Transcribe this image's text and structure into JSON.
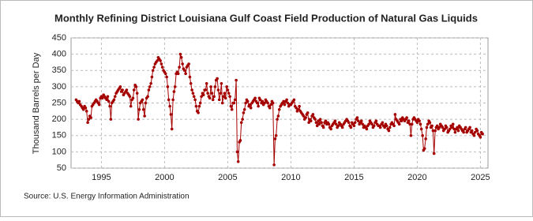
{
  "chart_data": {
    "type": "line",
    "title": "Monthly Refining District Louisiana Gulf Coast Field Production of Natural Gas Liquids",
    "y_label": "Thousand Barrels per Day",
    "source": "Source: U.S. Energy Information Administration",
    "color": "#a50000",
    "grid": true,
    "xlim": [
      1992.6,
      2025.6
    ],
    "xticks": [
      1995,
      2000,
      2005,
      2010,
      2015,
      2020,
      2025
    ],
    "ylim": [
      50,
      450
    ],
    "yticks": [
      50,
      100,
      150,
      200,
      250,
      300,
      350,
      400,
      450
    ],
    "x": [
      1993.0,
      1993.08,
      1993.17,
      1993.25,
      1993.33,
      1993.42,
      1993.5,
      1993.58,
      1993.67,
      1993.75,
      1993.83,
      1993.92,
      1994.0,
      1994.08,
      1994.17,
      1994.25,
      1994.33,
      1994.42,
      1994.5,
      1994.58,
      1994.67,
      1994.75,
      1994.83,
      1994.92,
      1995.0,
      1995.08,
      1995.17,
      1995.25,
      1995.33,
      1995.42,
      1995.5,
      1995.58,
      1995.67,
      1995.75,
      1995.83,
      1995.92,
      1996.0,
      1996.08,
      1996.17,
      1996.25,
      1996.33,
      1996.42,
      1996.5,
      1996.58,
      1996.67,
      1996.75,
      1996.83,
      1996.92,
      1997.0,
      1997.08,
      1997.17,
      1997.25,
      1997.33,
      1997.42,
      1997.5,
      1997.58,
      1997.67,
      1997.75,
      1997.83,
      1997.92,
      1998.0,
      1998.08,
      1998.17,
      1998.25,
      1998.33,
      1998.42,
      1998.5,
      1998.58,
      1998.67,
      1998.75,
      1998.83,
      1998.92,
      1999.0,
      1999.08,
      1999.17,
      1999.25,
      1999.33,
      1999.42,
      1999.5,
      1999.58,
      1999.67,
      1999.75,
      1999.83,
      1999.92,
      2000.0,
      2000.08,
      2000.17,
      2000.25,
      2000.33,
      2000.42,
      2000.5,
      2000.58,
      2000.67,
      2000.75,
      2000.83,
      2000.92,
      2001.0,
      2001.08,
      2001.17,
      2001.25,
      2001.33,
      2001.42,
      2001.5,
      2001.58,
      2001.67,
      2001.75,
      2001.83,
      2001.92,
      2002.0,
      2002.08,
      2002.17,
      2002.25,
      2002.33,
      2002.42,
      2002.5,
      2002.58,
      2002.67,
      2002.75,
      2002.83,
      2002.92,
      2003.0,
      2003.08,
      2003.17,
      2003.25,
      2003.33,
      2003.42,
      2003.5,
      2003.58,
      2003.67,
      2003.75,
      2003.83,
      2003.92,
      2004.0,
      2004.08,
      2004.17,
      2004.25,
      2004.33,
      2004.42,
      2004.5,
      2004.58,
      2004.67,
      2004.75,
      2004.83,
      2004.92,
      2005.0,
      2005.08,
      2005.17,
      2005.25,
      2005.33,
      2005.42,
      2005.5,
      2005.58,
      2005.67,
      2005.75,
      2005.83,
      2005.92,
      2006.0,
      2006.08,
      2006.17,
      2006.25,
      2006.33,
      2006.42,
      2006.5,
      2006.58,
      2006.67,
      2006.75,
      2006.83,
      2006.92,
      2007.0,
      2007.08,
      2007.17,
      2007.25,
      2007.33,
      2007.42,
      2007.5,
      2007.58,
      2007.67,
      2007.75,
      2007.83,
      2007.92,
      2008.0,
      2008.08,
      2008.17,
      2008.25,
      2008.33,
      2008.42,
      2008.5,
      2008.58,
      2008.67,
      2008.75,
      2008.83,
      2008.92,
      2009.0,
      2009.08,
      2009.17,
      2009.25,
      2009.33,
      2009.42,
      2009.5,
      2009.58,
      2009.67,
      2009.75,
      2009.83,
      2009.92,
      2010.0,
      2010.08,
      2010.17,
      2010.25,
      2010.33,
      2010.42,
      2010.5,
      2010.58,
      2010.67,
      2010.75,
      2010.83,
      2010.92,
      2011.0,
      2011.08,
      2011.17,
      2011.25,
      2011.33,
      2011.42,
      2011.5,
      2011.58,
      2011.67,
      2011.75,
      2011.83,
      2011.92,
      2012.0,
      2012.08,
      2012.17,
      2012.25,
      2012.33,
      2012.42,
      2012.5,
      2012.58,
      2012.67,
      2012.75,
      2012.83,
      2012.92,
      2013.0,
      2013.08,
      2013.17,
      2013.25,
      2013.33,
      2013.42,
      2013.5,
      2013.58,
      2013.67,
      2013.75,
      2013.83,
      2013.92,
      2014.0,
      2014.08,
      2014.17,
      2014.25,
      2014.33,
      2014.42,
      2014.5,
      2014.58,
      2014.67,
      2014.75,
      2014.83,
      2014.92,
      2015.0,
      2015.08,
      2015.17,
      2015.25,
      2015.33,
      2015.42,
      2015.5,
      2015.58,
      2015.67,
      2015.75,
      2015.83,
      2015.92,
      2016.0,
      2016.08,
      2016.17,
      2016.25,
      2016.33,
      2016.42,
      2016.5,
      2016.58,
      2016.67,
      2016.75,
      2016.83,
      2016.92,
      2017.0,
      2017.08,
      2017.17,
      2017.25,
      2017.33,
      2017.42,
      2017.5,
      2017.58,
      2017.67,
      2017.75,
      2017.83,
      2017.92,
      2018.0,
      2018.08,
      2018.17,
      2018.25,
      2018.33,
      2018.42,
      2018.5,
      2018.58,
      2018.67,
      2018.75,
      2018.83,
      2018.92,
      2019.0,
      2019.08,
      2019.17,
      2019.25,
      2019.33,
      2019.42,
      2019.5,
      2019.58,
      2019.67,
      2019.75,
      2019.83,
      2019.92,
      2020.0,
      2020.08,
      2020.17,
      2020.25,
      2020.33,
      2020.42,
      2020.5,
      2020.58,
      2020.67,
      2020.75,
      2020.83,
      2020.92,
      2021.0,
      2021.08,
      2021.17,
      2021.25,
      2021.33,
      2021.42,
      2021.5,
      2021.58,
      2021.67,
      2021.75,
      2021.83,
      2021.92,
      2022.0,
      2022.08,
      2022.17,
      2022.25,
      2022.33,
      2022.42,
      2022.5,
      2022.58,
      2022.67,
      2022.75,
      2022.83,
      2022.92,
      2023.0,
      2023.08,
      2023.17,
      2023.25,
      2023.33,
      2023.42,
      2023.5,
      2023.58,
      2023.67,
      2023.75,
      2023.83,
      2023.92,
      2024.0,
      2024.08,
      2024.17,
      2024.25,
      2024.33,
      2024.42,
      2024.5,
      2024.58,
      2024.67,
      2024.75,
      2024.83,
      2024.92,
      2025.0,
      2025.08,
      2025.17
    ],
    "values": [
      260,
      255,
      250,
      255,
      245,
      240,
      235,
      230,
      240,
      235,
      225,
      190,
      200,
      210,
      205,
      240,
      245,
      250,
      255,
      260,
      255,
      250,
      245,
      265,
      270,
      265,
      275,
      270,
      265,
      260,
      270,
      255,
      240,
      200,
      250,
      255,
      260,
      270,
      280,
      285,
      290,
      295,
      300,
      285,
      290,
      275,
      280,
      285,
      290,
      280,
      275,
      270,
      240,
      260,
      265,
      290,
      305,
      300,
      280,
      200,
      230,
      250,
      255,
      260,
      230,
      210,
      250,
      265,
      270,
      290,
      300,
      310,
      330,
      350,
      360,
      370,
      375,
      380,
      390,
      385,
      380,
      370,
      360,
      350,
      345,
      340,
      330,
      300,
      260,
      240,
      215,
      170,
      260,
      285,
      300,
      340,
      345,
      340,
      360,
      400,
      390,
      370,
      355,
      350,
      340,
      360,
      365,
      370,
      330,
      310,
      290,
      280,
      270,
      260,
      240,
      225,
      220,
      240,
      250,
      270,
      280,
      275,
      290,
      290,
      310,
      280,
      270,
      265,
      300,
      280,
      260,
      270,
      300,
      320,
      325,
      290,
      260,
      280,
      310,
      250,
      270,
      280,
      265,
      300,
      290,
      280,
      270,
      240,
      230,
      250,
      250,
      260,
      320,
      100,
      70,
      130,
      135,
      190,
      200,
      220,
      230,
      250,
      260,
      255,
      240,
      245,
      235,
      250,
      255,
      260,
      265,
      255,
      250,
      240,
      265,
      260,
      250,
      255,
      245,
      250,
      260,
      255,
      250,
      240,
      235,
      245,
      255,
      250,
      60,
      140,
      150,
      200,
      210,
      230,
      240,
      245,
      250,
      255,
      245,
      255,
      260,
      250,
      240,
      245,
      245,
      250,
      255,
      260,
      240,
      235,
      225,
      230,
      240,
      225,
      220,
      215,
      210,
      200,
      205,
      215,
      220,
      190,
      200,
      195,
      210,
      215,
      205,
      200,
      190,
      180,
      195,
      185,
      200,
      190,
      180,
      175,
      190,
      195,
      185,
      190,
      185,
      175,
      170,
      180,
      185,
      190,
      195,
      185,
      175,
      180,
      190,
      185,
      180,
      175,
      185,
      190,
      195,
      200,
      195,
      190,
      180,
      175,
      190,
      185,
      180,
      190,
      200,
      205,
      195,
      185,
      190,
      195,
      185,
      175,
      180,
      175,
      170,
      180,
      185,
      195,
      190,
      185,
      175,
      180,
      190,
      195,
      185,
      180,
      180,
      175,
      185,
      190,
      180,
      175,
      185,
      180,
      170,
      165,
      175,
      185,
      190,
      185,
      180,
      215,
      200,
      195,
      190,
      185,
      200,
      195,
      205,
      200,
      195,
      200,
      205,
      190,
      195,
      185,
      150,
      185,
      200,
      205,
      200,
      195,
      190,
      200,
      195,
      185,
      170,
      150,
      105,
      110,
      140,
      175,
      185,
      195,
      190,
      175,
      180,
      165,
      95,
      165,
      175,
      180,
      170,
      175,
      185,
      180,
      175,
      165,
      170,
      180,
      175,
      160,
      165,
      170,
      180,
      175,
      185,
      170,
      160,
      170,
      175,
      165,
      180,
      175,
      170,
      165,
      160,
      170,
      175,
      160,
      165,
      170,
      175,
      160,
      165,
      155,
      150,
      160,
      170,
      165,
      155,
      150,
      145,
      160,
      155
    ]
  }
}
